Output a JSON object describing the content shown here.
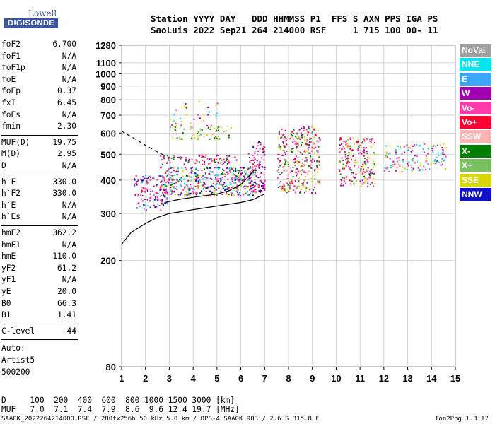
{
  "logo": {
    "line1": "Lowell",
    "line2": "DIGISONDE"
  },
  "header": {
    "line1": "Station YYYY DAY   DDD HHMMSS P1  FFS S AXN PPS IGA PS",
    "line2": "SaoLuis 2022 Sep21 264 214000 RSF     1 715 100 00- 11"
  },
  "params": {
    "group1": [
      {
        "k": "foF2",
        "v": "6.700"
      },
      {
        "k": "foF1",
        "v": "N/A"
      },
      {
        "k": "foF1p",
        "v": "N/A"
      },
      {
        "k": "foE",
        "v": "N/A"
      },
      {
        "k": "foEp",
        "v": "0.37"
      },
      {
        "k": "fxI",
        "v": "6.45"
      },
      {
        "k": "foEs",
        "v": "N/A"
      },
      {
        "k": "fmin",
        "v": "2.30"
      }
    ],
    "group2": [
      {
        "k": "MUF(D)",
        "v": "19.75"
      },
      {
        "k": "M(D)",
        "v": "2.95"
      },
      {
        "k": "D",
        "v": "N/A"
      }
    ],
    "group3": [
      {
        "k": "h`F",
        "v": "330.0"
      },
      {
        "k": "h`F2",
        "v": "330.0"
      },
      {
        "k": "h`E",
        "v": "N/A"
      },
      {
        "k": "h`Es",
        "v": "N/A"
      }
    ],
    "group4": [
      {
        "k": "hmF2",
        "v": "362.2"
      },
      {
        "k": "hmF1",
        "v": "N/A"
      },
      {
        "k": "hmE",
        "v": "110.0"
      },
      {
        "k": "yF2",
        "v": "61.2"
      },
      {
        "k": "yF1",
        "v": "N/A"
      },
      {
        "k": "yE",
        "v": "20.0"
      },
      {
        "k": "B0",
        "v": "66.3"
      },
      {
        "k": "B1",
        "v": "1.41"
      }
    ],
    "group5": [
      {
        "k": "C-level",
        "v": "44"
      }
    ],
    "auto": [
      "Auto:",
      "Artist5",
      "500200"
    ]
  },
  "legend": [
    {
      "label": "NoVal",
      "color": "#a0a0a0"
    },
    {
      "label": "NNE",
      "color": "#00e5ee"
    },
    {
      "label": "E",
      "color": "#3aa6ff"
    },
    {
      "label": "W",
      "color": "#a000b0"
    },
    {
      "label": "Vo-",
      "color": "#ff3caa"
    },
    {
      "label": "Vo+",
      "color": "#ff0030"
    },
    {
      "label": "SSW",
      "color": "#ffb4b4"
    },
    {
      "label": "X-",
      "color": "#008000"
    },
    {
      "label": "X+",
      "color": "#78c060"
    },
    {
      "label": "SSE",
      "color": "#d8d800"
    },
    {
      "label": "NNW",
      "color": "#1010c8"
    }
  ],
  "chart_data": {
    "type": "scatter",
    "title": "",
    "xlabel": "",
    "ylabel": "",
    "xlim": [
      1,
      15
    ],
    "ylim": [
      80,
      1280
    ],
    "x_ticks": [
      "1",
      "2",
      "3",
      "4",
      "5",
      "6",
      "7",
      "8",
      "9",
      "10",
      "11",
      "12",
      "13",
      "14",
      "15"
    ],
    "y_ticks": [
      "80",
      "200",
      "300",
      "400",
      "500",
      "600",
      "700",
      "800",
      "900",
      "1000",
      "1100",
      "1280"
    ],
    "y_tick_values": [
      80,
      200,
      300,
      400,
      500,
      600,
      700,
      800,
      900,
      1000,
      1100,
      1280
    ],
    "grid": true,
    "legend_position": "right",
    "echo_clusters": [
      {
        "x": [
          1.5,
          2.9
        ],
        "y": [
          310,
          420
        ],
        "density": 0.55,
        "colors": [
          "#1010c8",
          "#a000b0",
          "#ff3caa",
          "#3aa6ff",
          "#ff0030"
        ]
      },
      {
        "x": [
          2.6,
          6.6
        ],
        "y": [
          350,
          450
        ],
        "density": 0.75,
        "colors": [
          "#ff3caa",
          "#a000b0",
          "#ff0030",
          "#3aa6ff",
          "#1010c8",
          "#008000",
          "#d8d800",
          "#00e5ee"
        ]
      },
      {
        "x": [
          2.6,
          5.8
        ],
        "y": [
          460,
          500
        ],
        "density": 0.55,
        "colors": [
          "#a000b0",
          "#ff3caa",
          "#ff0030",
          "#008000"
        ]
      },
      {
        "x": [
          3.0,
          5.6
        ],
        "y": [
          570,
          640
        ],
        "density": 0.4,
        "colors": [
          "#d8d800",
          "#78c060",
          "#008000",
          "#ffb4b4"
        ]
      },
      {
        "x": [
          3.0,
          5.0
        ],
        "y": [
          640,
          800
        ],
        "density": 0.12,
        "colors": [
          "#a000b0",
          "#00e5ee",
          "#ff3caa",
          "#d8d800"
        ]
      },
      {
        "x": [
          6.3,
          7.0
        ],
        "y": [
          360,
          560
        ],
        "density": 0.6,
        "colors": [
          "#ff3caa",
          "#a000b0",
          "#ff0030",
          "#1010c8"
        ]
      },
      {
        "x": [
          7.5,
          9.3
        ],
        "y": [
          360,
          640
        ],
        "density": 0.55,
        "colors": [
          "#ff3caa",
          "#a000b0",
          "#ff0030",
          "#d8d800",
          "#ffb4b4",
          "#008000"
        ]
      },
      {
        "x": [
          10.1,
          11.6
        ],
        "y": [
          380,
          580
        ],
        "density": 0.5,
        "colors": [
          "#a000b0",
          "#ff3caa",
          "#ff0030",
          "#008000",
          "#d8d800"
        ]
      },
      {
        "x": [
          12.0,
          14.6
        ],
        "y": [
          430,
          550
        ],
        "density": 0.35,
        "colors": [
          "#00e5ee",
          "#3aa6ff",
          "#ff3caa",
          "#a000b0",
          "#d8d800"
        ]
      }
    ],
    "profile_solid": {
      "x": [
        1.0,
        1.4,
        2.0,
        2.5,
        3.0,
        3.5,
        4.0,
        4.5,
        5.0,
        5.5,
        6.0,
        6.5,
        7.0
      ],
      "y": [
        230,
        255,
        275,
        290,
        300,
        305,
        310,
        315,
        320,
        325,
        330,
        338,
        355
      ]
    },
    "profile_solid_upper": {
      "x": [
        2.8,
        3.5,
        4.0,
        4.5,
        5.0,
        5.5,
        6.0,
        6.3,
        6.6
      ],
      "y": [
        330,
        340,
        345,
        350,
        355,
        365,
        385,
        410,
        440
      ]
    },
    "profile_dashed": {
      "x": [
        1.0,
        1.5,
        2.0,
        2.5,
        2.8
      ],
      "y": [
        610,
        575,
        540,
        510,
        495
      ]
    }
  },
  "footer": {
    "d_line": "D     100  200  400  600  800 1000 1500 3000 [km]",
    "muf_line": "MUF   7.0  7.1  7.4  7.9  8.6  9.6 12.4 19.7 [MHz]",
    "file_line": "SAA0K_2022264214000.RSF / 280fx256h 50 kHz 5.0 km / DPS-4 SAA0K 903 / 2.6 S 315.8 E",
    "version": "Ion2Png 1.3.17"
  }
}
